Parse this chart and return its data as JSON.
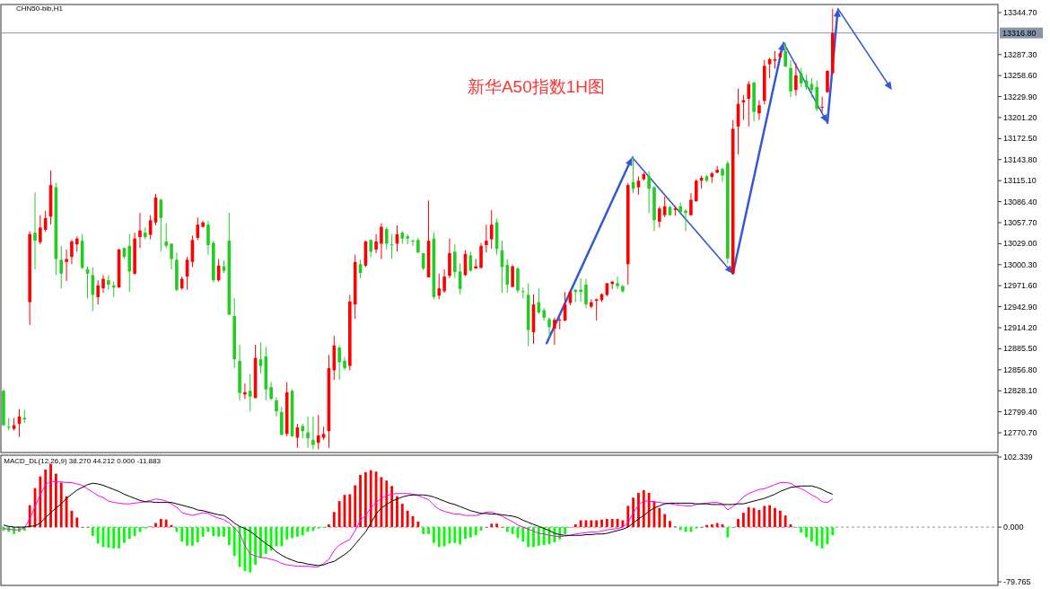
{
  "chart_data": [
    {
      "type": "candlestick",
      "title": "新华A50指数1H图",
      "annotations": [
        "CHN50-bib,H1"
      ],
      "categories": [
        null,
        null,
        null,
        null,
        null,
        null,
        null,
        null,
        null,
        null,
        null,
        null,
        null,
        null,
        null,
        null,
        null,
        null,
        null,
        null,
        null,
        null,
        null,
        null,
        null,
        null,
        null,
        null,
        null,
        null,
        null,
        null,
        null,
        null,
        null,
        null,
        null,
        null,
        null,
        null,
        null,
        null,
        null,
        null,
        null,
        null,
        null,
        null,
        null,
        null,
        null,
        null,
        null,
        null,
        null,
        null,
        null,
        null,
        null,
        null,
        null,
        null,
        null,
        null,
        null,
        null,
        null,
        null,
        null,
        null,
        null,
        null,
        null,
        null,
        null,
        null,
        null,
        null,
        null,
        null,
        null,
        null,
        null,
        null,
        null,
        null,
        null,
        null,
        null,
        null,
        null,
        null,
        null,
        null,
        null,
        null,
        null,
        null,
        null,
        null,
        null,
        null,
        null,
        null,
        null,
        null,
        null,
        null,
        null,
        null,
        null,
        null,
        null,
        null,
        null,
        null,
        null,
        null,
        null,
        null,
        null,
        null,
        null,
        null,
        null,
        null,
        null,
        null,
        null,
        null,
        null,
        null,
        null,
        null,
        null,
        null,
        null,
        null,
        null,
        null,
        null,
        null,
        null,
        null,
        null,
        null,
        null,
        null,
        null,
        null,
        null,
        null,
        null,
        null,
        null,
        null,
        null,
        null,
        null,
        null,
        null,
        null,
        null,
        null,
        null,
        null,
        null,
        null,
        null,
        null,
        null,
        null,
        null,
        null,
        null,
        null,
        null,
        null,
        null,
        null,
        null,
        null,
        null,
        null,
        null,
        null,
        null,
        null,
        null,
        null
      ],
      "ohlc": [
        [
          12828,
          12830,
          12780,
          12781
        ],
        [
          12779,
          12791,
          12774,
          12778
        ],
        [
          12776,
          12791,
          12774,
          12781
        ],
        [
          12783,
          12803,
          12765,
          12793
        ],
        [
          12791,
          12802,
          12784,
          12789
        ],
        [
          12949,
          13046,
          12918,
          13042
        ],
        [
          13044,
          13099,
          12994,
          13033
        ],
        [
          13031,
          13068,
          13028,
          13051
        ],
        [
          13048,
          13074,
          13045,
          13064
        ],
        [
          13066,
          13129,
          13055,
          13109
        ],
        [
          13106,
          13112,
          12986,
          13008
        ],
        [
          13007,
          13026,
          12968,
          12988
        ],
        [
          13004,
          13021,
          12978,
          13008
        ],
        [
          13011,
          13034,
          13001,
          13032
        ],
        [
          13028,
          13039,
          13018,
          13036
        ],
        [
          13033,
          13042,
          12994,
          12996
        ],
        [
          12994,
          12998,
          12954,
          12988
        ],
        [
          12986,
          12997,
          12937,
          12959
        ],
        [
          12956,
          12979,
          12946,
          12972
        ],
        [
          12968,
          12986,
          12962,
          12981
        ],
        [
          12979,
          12986,
          12966,
          12973
        ],
        [
          12972,
          12977,
          12956,
          12969
        ],
        [
          12969,
          13022,
          12969,
          13021
        ],
        [
          13023,
          13024,
          13008,
          13011
        ],
        [
          13026,
          13042,
          12963,
          12991
        ],
        [
          12988,
          13044,
          12986,
          13036
        ],
        [
          13038,
          13071,
          13023,
          13047
        ],
        [
          13044,
          13051,
          13035,
          13038
        ],
        [
          13041,
          13068,
          13035,
          13061
        ],
        [
          13058,
          13097,
          13054,
          13092
        ],
        [
          13089,
          13091,
          13018,
          13064
        ],
        [
          13032,
          13057,
          13023,
          13026
        ],
        [
          13029,
          13029,
          12994,
          13008
        ],
        [
          13007,
          13017,
          12964,
          12966
        ],
        [
          12968,
          12984,
          12966,
          12981
        ],
        [
          12984,
          13011,
          12966,
          13007
        ],
        [
          13004,
          13040,
          12997,
          13034
        ],
        [
          13037,
          13065,
          13034,
          13055
        ],
        [
          13052,
          13060,
          13051,
          13058
        ],
        [
          13055,
          13060,
          13014,
          13027
        ],
        [
          13030,
          13033,
          12976,
          12979
        ],
        [
          12979,
          13008,
          12977,
          12999
        ],
        [
          12998,
          13006,
          12989,
          12992
        ],
        [
          13033,
          13071,
          12932,
          12932
        ],
        [
          12930,
          12955,
          12859,
          12871
        ],
        [
          12869,
          12891,
          12815,
          12825
        ],
        [
          12823,
          12838,
          12817,
          12826
        ],
        [
          12828,
          12851,
          12800,
          12820
        ],
        [
          12818,
          12891,
          12818,
          12873
        ],
        [
          12871,
          12894,
          12852,
          12862
        ],
        [
          12875,
          12888,
          12815,
          12830
        ],
        [
          12833,
          12840,
          12815,
          12817
        ],
        [
          12815,
          12819,
          12793,
          12800
        ],
        [
          12799,
          12806,
          12767,
          12768
        ],
        [
          12769,
          12840,
          12766,
          12826
        ],
        [
          12828,
          12830,
          12765,
          12766
        ],
        [
          12764,
          12783,
          12750,
          12778
        ],
        [
          12780,
          12783,
          12763,
          12773
        ],
        [
          12771,
          12793,
          12750,
          12763
        ],
        [
          12761,
          12793,
          12748,
          12754
        ],
        [
          12757,
          12795,
          12748,
          12767
        ],
        [
          12764,
          12779,
          12761,
          12769
        ],
        [
          12773,
          12877,
          12750,
          12859
        ],
        [
          12856,
          12903,
          12843,
          12890
        ],
        [
          12887,
          12890,
          12843,
          12867
        ],
        [
          12869,
          12874,
          12856,
          12859
        ],
        [
          12862,
          12959,
          12856,
          12950
        ],
        [
          12946,
          13014,
          12926,
          13004
        ],
        [
          13001,
          13007,
          12982,
          12989
        ],
        [
          12999,
          13033,
          12997,
          13032
        ],
        [
          13034,
          13035,
          13011,
          13018
        ],
        [
          13021,
          13042,
          13016,
          13032
        ],
        [
          13029,
          13057,
          13008,
          13052
        ],
        [
          13049,
          13052,
          13021,
          13029
        ],
        [
          13028,
          13042,
          13008,
          13027
        ],
        [
          13029,
          13054,
          13018,
          13042
        ],
        [
          13044,
          13046,
          13029,
          13036
        ],
        [
          13039,
          13042,
          13028,
          13036
        ],
        [
          13033,
          13035,
          13026,
          13032
        ],
        [
          13034,
          13037,
          13016,
          13017
        ],
        [
          13016,
          13016,
          12993,
          12995
        ],
        [
          12983,
          13088,
          12983,
          13033
        ],
        [
          13036,
          13044,
          12953,
          12956
        ],
        [
          12958,
          12988,
          12953,
          12968
        ],
        [
          12964,
          12994,
          12962,
          12984
        ],
        [
          12985,
          13036,
          12982,
          13016
        ],
        [
          13018,
          13028,
          12982,
          12990
        ],
        [
          12991,
          13002,
          12960,
          12967
        ],
        [
          12986,
          13020,
          12985,
          13015
        ],
        [
          13013,
          13018,
          12991,
          12992
        ],
        [
          12995,
          13008,
          12995,
          12998
        ],
        [
          12996,
          13030,
          12995,
          13026
        ],
        [
          13027,
          13055,
          13017,
          13033
        ],
        [
          13035,
          13075,
          13022,
          13055
        ],
        [
          13058,
          13063,
          13014,
          13022
        ],
        [
          13020,
          13033,
          12962,
          12997
        ],
        [
          13000,
          13008,
          12962,
          12973
        ],
        [
          12970,
          13000,
          12969,
          12998
        ],
        [
          12995,
          12997,
          12962,
          12965
        ],
        [
          12964,
          12969,
          12954,
          12963
        ],
        [
          12959,
          12975,
          12889,
          12911
        ],
        [
          12908,
          12960,
          12892,
          12946
        ],
        [
          12949,
          12968,
          12933,
          12935
        ],
        [
          12938,
          12941,
          12924,
          12928
        ],
        [
          12926,
          12928,
          12901,
          12915
        ],
        [
          12913,
          12928,
          12891,
          12925
        ],
        [
          12924,
          12928,
          12912,
          12925
        ],
        [
          12924,
          12963,
          12923,
          12946
        ],
        [
          12948,
          12966,
          12945,
          12963
        ],
        [
          12966,
          12967,
          12949,
          12963
        ],
        [
          12966,
          12982,
          12950,
          12963
        ],
        [
          12973,
          12981,
          12941,
          12946
        ],
        [
          12943,
          12953,
          12941,
          12949
        ],
        [
          12951,
          12954,
          12924,
          12953
        ],
        [
          12952,
          12961,
          12949,
          12960
        ],
        [
          12959,
          12975,
          12957,
          12975
        ],
        [
          12974,
          12978,
          12967,
          12977
        ],
        [
          12975,
          12984,
          12967,
          12971
        ],
        [
          12971,
          12973,
          12962,
          12964
        ],
        [
          13001,
          13112,
          12973,
          13109
        ],
        [
          13113,
          13149,
          13098,
          13104
        ],
        [
          13106,
          13121,
          13096,
          13115
        ],
        [
          13117,
          13126,
          13115,
          13124
        ],
        [
          13121,
          13128,
          13071,
          13104
        ],
        [
          13106,
          13108,
          13046,
          13061
        ],
        [
          13059,
          13080,
          13051,
          13077
        ],
        [
          13068,
          13093,
          13065,
          13080
        ],
        [
          13079,
          13081,
          13067,
          13068
        ],
        [
          13075,
          13080,
          13067,
          13077
        ],
        [
          13080,
          13085,
          13071,
          13072
        ],
        [
          13074,
          13076,
          13046,
          13071
        ],
        [
          13068,
          13098,
          13067,
          13089
        ],
        [
          13087,
          13117,
          13086,
          13115
        ],
        [
          13115,
          13122,
          13104,
          13119
        ],
        [
          13121,
          13123,
          13113,
          13115
        ],
        [
          13120,
          13127,
          13112,
          13125
        ],
        [
          13126,
          13135,
          13125,
          13130
        ],
        [
          13131,
          13133,
          13113,
          13122
        ],
        [
          13139,
          13142,
          13002,
          13009
        ],
        [
          12988,
          13198,
          12988,
          13186
        ],
        [
          13189,
          13241,
          13151,
          13220
        ],
        [
          13222,
          13232,
          13198,
          13225
        ],
        [
          13227,
          13251,
          13189,
          13247
        ],
        [
          13249,
          13250,
          13196,
          13209
        ],
        [
          13207,
          13225,
          13198,
          13218
        ],
        [
          13224,
          13280,
          13219,
          13272
        ],
        [
          13274,
          13283,
          13255,
          13281
        ],
        [
          13279,
          13292,
          13268,
          13281
        ],
        [
          13284,
          13292,
          13282,
          13289
        ],
        [
          13292,
          13304,
          13270,
          13271
        ],
        [
          13269,
          13280,
          13229,
          13237
        ],
        [
          13239,
          13276,
          13231,
          13259
        ],
        [
          13262,
          13269,
          13243,
          13248
        ],
        [
          13252,
          13260,
          13239,
          13243
        ],
        [
          13247,
          13255,
          13229,
          13239
        ],
        [
          13243,
          13252,
          13210,
          13213
        ],
        [
          13215,
          13230,
          13209,
          13216
        ],
        [
          13236,
          13266,
          13235,
          13265
        ],
        [
          13262,
          13350,
          13261,
          13316.8
        ],
        null,
        null,
        null,
        null,
        null,
        null,
        null,
        null,
        null,
        null,
        null,
        null,
        null,
        null,
        null,
        null,
        null,
        null,
        null,
        null,
        null,
        null,
        null,
        null,
        null,
        null,
        null,
        null,
        null,
        null,
        null
      ],
      "colors": [
        "#22cc22",
        "#22cc22",
        "#ff0000",
        "#ff0000",
        "#22cc22",
        "#ff0000",
        "#22cc22",
        "#ff0000",
        "#ff0000",
        "#ff0000",
        "#22cc22",
        "#22cc22",
        "#ff0000",
        "#ff0000",
        "#ff0000",
        "#22cc22",
        "#22cc22",
        "#22cc22",
        "#ff0000",
        "#ff0000",
        "#22cc22",
        "#22cc22",
        "#ff0000",
        "#22cc22",
        "#22cc22",
        "#ff0000",
        "#ff0000",
        "#22cc22",
        "#ff0000",
        "#ff0000",
        "#22cc22",
        "#22cc22",
        "#22cc22",
        "#22cc22",
        "#ff0000",
        "#ff0000",
        "#ff0000",
        "#ff0000",
        "#ff0000",
        "#22cc22",
        "#22cc22",
        "#ff0000",
        "#22cc22",
        "#22cc22",
        "#22cc22",
        "#22cc22",
        "#ff0000",
        "#22cc22",
        "#ff0000",
        "#22cc22",
        "#22cc22",
        "#22cc22",
        "#22cc22",
        "#22cc22",
        "#ff0000",
        "#22cc22",
        "#ff0000",
        "#22cc22",
        "#22cc22",
        "#22cc22",
        "#ff0000",
        "#ff0000",
        "#ff0000",
        "#ff0000",
        "#22cc22",
        "#22cc22",
        "#ff0000",
        "#ff0000",
        "#22cc22",
        "#ff0000",
        "#22cc22",
        "#ff0000",
        "#ff0000",
        "#22cc22",
        "#22cc22",
        "#ff0000",
        "#22cc22",
        "#22cc22",
        "#22cc22",
        "#22cc22",
        "#22cc22",
        "#ff0000",
        "#22cc22",
        "#ff0000",
        "#ff0000",
        "#ff0000",
        "#22cc22",
        "#22cc22",
        "#ff0000",
        "#22cc22",
        "#ff0000",
        "#ff0000",
        "#ff0000",
        "#ff0000",
        "#22cc22",
        "#22cc22",
        "#22cc22",
        "#ff0000",
        "#22cc22",
        "#22cc22",
        "#22cc22",
        "#ff0000",
        "#22cc22",
        "#22cc22",
        "#22cc22",
        "#ff0000",
        "#ff0000",
        "#ff0000",
        "#ff0000",
        "#22cc22",
        "#22cc22",
        "#22cc22",
        "#ff0000",
        "#ff0000",
        "#ff0000",
        "#ff0000",
        "#ff0000",
        "#22cc22",
        "#22cc22",
        "#ff0000",
        "#22cc22",
        "#ff0000",
        "#ff0000",
        "#22cc22",
        "#22cc22",
        "#ff0000",
        "#ff0000",
        "#22cc22",
        "#ff0000",
        "#22cc22",
        "#22cc22",
        "#ff0000",
        "#ff0000",
        "#ff0000",
        "#22cc22",
        "#ff0000",
        "#ff0000",
        "#22cc22",
        "#22cc22",
        "#ff0000",
        "#ff0000",
        "#ff0000",
        "#ff0000",
        "#22cc22",
        "#ff0000",
        "#ff0000",
        "#ff0000",
        "#ff0000",
        "#ff0000",
        "#22cc22",
        "#22cc22",
        "#ff0000",
        "#22cc22",
        "#22cc22",
        "#22cc22",
        "#22cc22",
        "#ff0000",
        "#ff0000",
        "#ff0000",
        null,
        null,
        null,
        null,
        null,
        null,
        null,
        null,
        null,
        null,
        null,
        null,
        null,
        null,
        null,
        null,
        null,
        null,
        null,
        null,
        null,
        null,
        null,
        null,
        null,
        null,
        null,
        null,
        null,
        null,
        null
      ],
      "ylim": [
        12743.7,
        13355.7
      ],
      "yticks": [
        {
          "value": 13344.7,
          "label": "13344.70"
        },
        {
          "value": 13287.3,
          "label": "13287.30"
        },
        {
          "value": 13258.6,
          "label": "13258.60"
        },
        {
          "value": 13229.9,
          "label": "13229.90"
        },
        {
          "value": 13201.2,
          "label": "13201.20"
        },
        {
          "value": 13172.5,
          "label": "13172.50"
        },
        {
          "value": 13143.8,
          "label": "13143.80"
        },
        {
          "value": 13115.1,
          "label": "13115.10"
        },
        {
          "value": 13086.4,
          "label": "13086.40"
        },
        {
          "value": 13057.7,
          "label": "13057.70"
        },
        {
          "value": 13029,
          "label": "13029.00"
        },
        {
          "value": 13000.3,
          "label": "13000.30"
        },
        {
          "value": 12971.6,
          "label": "12971.60"
        },
        {
          "value": 12942.9,
          "label": "12942.90"
        },
        {
          "value": 12914.2,
          "label": "12914.20"
        },
        {
          "value": 12885.5,
          "label": "12885.50"
        },
        {
          "value": 12856.8,
          "label": "12856.80"
        },
        {
          "value": 12828.1,
          "label": "12828.10"
        },
        {
          "value": 12799.4,
          "label": "12799.40"
        },
        {
          "value": 12770.7,
          "label": "12770.70"
        }
      ],
      "ref_lines": [
        {
          "axis": "y",
          "value": 13316.8,
          "label": "13316.80",
          "color": "#8496a8"
        }
      ]
    },
    {
      "type": "bar",
      "title": "MACD_DL(12,26,9) 38.270 44.212 0.000 -11.883",
      "categories": [
        null,
        null,
        null,
        null,
        null,
        null,
        null,
        null,
        null,
        null,
        null,
        null,
        null,
        null,
        null,
        null,
        null,
        null,
        null,
        null,
        null,
        null,
        null,
        null,
        null,
        null,
        null,
        null,
        null,
        null,
        null,
        null,
        null,
        null,
        null,
        null,
        null,
        null,
        null,
        null,
        null,
        null,
        null,
        null,
        null,
        null,
        null,
        null,
        null,
        null,
        null,
        null,
        null,
        null,
        null,
        null,
        null,
        null,
        null,
        null,
        null,
        null,
        null,
        null,
        null,
        null,
        null,
        null,
        null,
        null,
        null,
        null,
        null,
        null,
        null,
        null,
        null,
        null,
        null,
        null,
        null,
        null,
        null,
        null,
        null,
        null,
        null,
        null,
        null,
        null,
        null,
        null,
        null,
        null,
        null,
        null,
        null,
        null,
        null,
        null,
        null,
        null,
        null,
        null,
        null,
        null,
        null,
        null,
        null,
        null,
        null,
        null,
        null,
        null,
        null,
        null,
        null,
        null,
        null,
        null,
        null,
        null,
        null,
        null,
        null,
        null,
        null,
        null,
        null,
        null,
        null,
        null,
        null,
        null,
        null,
        null,
        null,
        null,
        null,
        null,
        null,
        null,
        null,
        null,
        null,
        null,
        null,
        null,
        null,
        null,
        null,
        null,
        null,
        null,
        null,
        null,
        null,
        null,
        null,
        null,
        null,
        null,
        null,
        null,
        null,
        null,
        null,
        null,
        null,
        null,
        null,
        null,
        null,
        null,
        null,
        null,
        null,
        null,
        null,
        null,
        null,
        null,
        null,
        null,
        null,
        null,
        null,
        null,
        null,
        null
      ],
      "series": [
        {
          "type": "bar",
          "values": [
            -5,
            -7,
            -10,
            -7,
            -5,
            32,
            57,
            74,
            84,
            92,
            78,
            65,
            45,
            24,
            14,
            0,
            0,
            -13,
            -24,
            -29,
            -30,
            -31,
            -31,
            -23,
            -17,
            -13,
            -7,
            -2,
            1,
            6,
            12,
            11,
            3,
            -7,
            -21,
            -27,
            -27,
            -22,
            -14,
            -7,
            -13,
            -14,
            -14,
            -26,
            -42,
            -58,
            -64,
            -66,
            -55,
            -45,
            -39,
            -34,
            -28,
            -28,
            -18,
            -16,
            -14,
            -12,
            -7,
            -5,
            -2,
            -1,
            4,
            22,
            38,
            47,
            48,
            61,
            76,
            80,
            83,
            81,
            73,
            68,
            60,
            45,
            34,
            24,
            16,
            8,
            -10,
            -10,
            -23,
            -29,
            -28,
            -24,
            -23,
            -25,
            -17,
            -15,
            -12,
            -5,
            0,
            5,
            5,
            0,
            -7,
            -10,
            -16,
            -21,
            -29,
            -29,
            -27,
            -26,
            -25,
            -22,
            -18,
            -10,
            0,
            4,
            10,
            10,
            10,
            10,
            11,
            12,
            12,
            12,
            10,
            31,
            43,
            50,
            54,
            50,
            38,
            28,
            19,
            9,
            1,
            -4,
            -7,
            -7,
            -2,
            0,
            3,
            4,
            6,
            4,
            -15,
            -1,
            12,
            21,
            29,
            28,
            25,
            31,
            32,
            28,
            24,
            17,
            4,
            -1,
            -8,
            -15,
            -21,
            -27,
            -31,
            -25,
            -12,
            null,
            null,
            null,
            null,
            null,
            null,
            null,
            null,
            null,
            null,
            null,
            null,
            null,
            null,
            null,
            null,
            null,
            null,
            null,
            null,
            null,
            null,
            null,
            null,
            null,
            null,
            null,
            null,
            null,
            null,
            null
          ],
          "colors": [
            "#00ff00",
            "#00ff00",
            "#00ff00",
            "#00ff00",
            "#00ff00",
            "#ff0000",
            "#ff0000",
            "#ff0000",
            "#ff0000",
            "#ff0000",
            "#ff0000",
            "#ff0000",
            "#ff0000",
            "#ff0000",
            "#ff0000",
            "#ff0000",
            "#ff0000",
            "#00ff00",
            "#00ff00",
            "#00ff00",
            "#00ff00",
            "#00ff00",
            "#00ff00",
            "#00ff00",
            "#00ff00",
            "#00ff00",
            "#00ff00",
            "#00ff00",
            "#ff0000",
            "#ff0000",
            "#ff0000",
            "#ff0000",
            "#ff0000",
            "#00ff00",
            "#00ff00",
            "#00ff00",
            "#00ff00",
            "#00ff00",
            "#00ff00",
            "#00ff00",
            "#00ff00",
            "#00ff00",
            "#00ff00",
            "#00ff00",
            "#00ff00",
            "#00ff00",
            "#00ff00",
            "#00ff00",
            "#00ff00",
            "#00ff00",
            "#00ff00",
            "#00ff00",
            "#00ff00",
            "#00ff00",
            "#00ff00",
            "#00ff00",
            "#00ff00",
            "#00ff00",
            "#00ff00",
            "#00ff00",
            "#00ff00",
            "#00ff00",
            "#ff0000",
            "#ff0000",
            "#ff0000",
            "#ff0000",
            "#ff0000",
            "#ff0000",
            "#ff0000",
            "#ff0000",
            "#ff0000",
            "#ff0000",
            "#ff0000",
            "#ff0000",
            "#ff0000",
            "#ff0000",
            "#ff0000",
            "#ff0000",
            "#ff0000",
            "#ff0000",
            "#00ff00",
            "#00ff00",
            "#00ff00",
            "#00ff00",
            "#00ff00",
            "#00ff00",
            "#00ff00",
            "#00ff00",
            "#00ff00",
            "#00ff00",
            "#00ff00",
            "#00ff00",
            "#ff0000",
            "#ff0000",
            "#ff0000",
            "#ff0000",
            "#00ff00",
            "#00ff00",
            "#00ff00",
            "#00ff00",
            "#00ff00",
            "#00ff00",
            "#00ff00",
            "#00ff00",
            "#00ff00",
            "#00ff00",
            "#00ff00",
            "#00ff00",
            "#ff0000",
            "#ff0000",
            "#ff0000",
            "#ff0000",
            "#ff0000",
            "#ff0000",
            "#ff0000",
            "#ff0000",
            "#ff0000",
            "#ff0000",
            "#ff0000",
            "#ff0000",
            "#ff0000",
            "#ff0000",
            "#ff0000",
            "#ff0000",
            "#ff0000",
            "#ff0000",
            "#ff0000",
            "#ff0000",
            "#ff0000",
            "#00ff00",
            "#00ff00",
            "#00ff00",
            "#00ff00",
            "#ff0000",
            "#ff0000",
            "#ff0000",
            "#ff0000",
            "#ff0000",
            "#00ff00",
            "#00ff00",
            "#ff0000",
            "#ff0000",
            "#ff0000",
            "#ff0000",
            "#ff0000",
            "#ff0000",
            "#ff0000",
            "#ff0000",
            "#ff0000",
            "#ff0000",
            "#ff0000",
            "#00ff00",
            "#00ff00",
            "#00ff00",
            "#00ff00",
            "#00ff00",
            "#00ff00",
            "#00ff00",
            "#00ff00",
            null,
            null,
            null,
            null,
            null,
            null,
            null,
            null,
            null,
            null,
            null,
            null,
            null,
            null,
            null,
            null,
            null,
            null,
            null,
            null,
            null,
            null,
            null,
            null,
            null,
            null,
            null,
            null,
            null,
            null,
            null
          ]
        },
        {
          "type": "line",
          "color": "#ff00ff",
          "values": [
            -2,
            -3,
            -4,
            -4,
            -1,
            12,
            30,
            47,
            62,
            67,
            66,
            66,
            65,
            65,
            63,
            61,
            56,
            51,
            46,
            43,
            38,
            36,
            35,
            34,
            34,
            35,
            36,
            37,
            39,
            41,
            40,
            38,
            34,
            29,
            21,
            19,
            17,
            19,
            21,
            20,
            16,
            13,
            11,
            6,
            -1,
            -9,
            -27,
            -39,
            -42,
            -44,
            -45,
            -47,
            -49,
            -53,
            -55,
            -56,
            -57,
            -57,
            -57,
            -58,
            -58,
            -53,
            -47,
            -34,
            -26,
            -22,
            -18,
            -5,
            10,
            17,
            28,
            36,
            42,
            46,
            48,
            49,
            49,
            49,
            48,
            46,
            43,
            40,
            32,
            26,
            23,
            21,
            19,
            19,
            17,
            17,
            17,
            19,
            22,
            22,
            19,
            16,
            12,
            8,
            3,
            0,
            -3,
            -6,
            -9,
            -10,
            -12,
            -13,
            -14,
            -13,
            -12,
            -10,
            -9,
            -8,
            -7,
            -7,
            -6,
            -4,
            -3,
            -2,
            0,
            6,
            21,
            32,
            38,
            38,
            37,
            36,
            35,
            34,
            33,
            32,
            31,
            31,
            33,
            34,
            35,
            36,
            36,
            34,
            25,
            30,
            36,
            44,
            49,
            52,
            55,
            56,
            59,
            62,
            65,
            65,
            64,
            59,
            56,
            52,
            47,
            43,
            37,
            36,
            41,
            null,
            null,
            null,
            null,
            null,
            null,
            null,
            null,
            null,
            null,
            null,
            null,
            null,
            null,
            null,
            null,
            null,
            null,
            null,
            null,
            null,
            null,
            null,
            null,
            null,
            null,
            null,
            null,
            null,
            null,
            null
          ]
        },
        {
          "type": "line",
          "color": "#000000",
          "values": [
            3,
            1,
            0,
            0,
            0,
            1,
            2,
            6,
            14,
            21,
            28,
            34,
            42,
            48,
            54,
            58,
            62,
            64,
            63,
            61,
            58,
            55,
            52,
            48,
            45,
            42,
            39,
            37,
            37,
            36,
            36,
            36,
            36,
            34,
            32,
            30,
            28,
            25,
            24,
            22,
            20,
            18,
            17,
            12,
            6,
            1,
            -2,
            -6,
            -12,
            -18,
            -24,
            -29,
            -36,
            -41,
            -45,
            -48,
            -51,
            -52,
            -54,
            -55,
            -56,
            -55,
            -52,
            -50,
            -45,
            -40,
            -34,
            -25,
            -16,
            -7,
            6,
            19,
            28,
            33,
            38,
            41,
            44,
            46,
            47,
            47,
            47,
            46,
            44,
            41,
            38,
            35,
            33,
            30,
            27,
            24,
            22,
            20,
            20,
            19,
            19,
            18,
            17,
            16,
            14,
            10,
            7,
            4,
            1,
            -2,
            -5,
            -9,
            -11,
            -12,
            -12,
            -12,
            -12,
            -11,
            -11,
            -10,
            -10,
            -9,
            -7,
            -5,
            -3,
            0,
            6,
            12,
            17,
            23,
            28,
            31,
            34,
            35,
            35,
            35,
            35,
            35,
            34,
            34,
            34,
            33,
            33,
            33,
            33,
            33,
            34,
            34,
            36,
            38,
            40,
            42,
            45,
            48,
            52,
            55,
            58,
            59,
            60,
            60,
            60,
            58,
            55,
            51,
            48,
            null,
            null,
            null,
            null,
            null,
            null,
            null,
            null,
            null,
            null,
            null,
            null,
            null,
            null,
            null,
            null,
            null,
            null,
            null,
            null,
            null,
            null,
            null,
            null,
            null,
            null,
            null,
            null,
            null,
            null,
            null
          ]
        }
      ],
      "ylim": [
        -85.0,
        104.9
      ],
      "yticks": [
        102.339,
        {
          "value": 0,
          "label": "0.000"
        },
        -79.765
      ],
      "ref_lines": [
        {
          "axis": "y",
          "value": 0,
          "line_style": "dashed",
          "color": "#8496a8"
        }
      ]
    }
  ]
}
